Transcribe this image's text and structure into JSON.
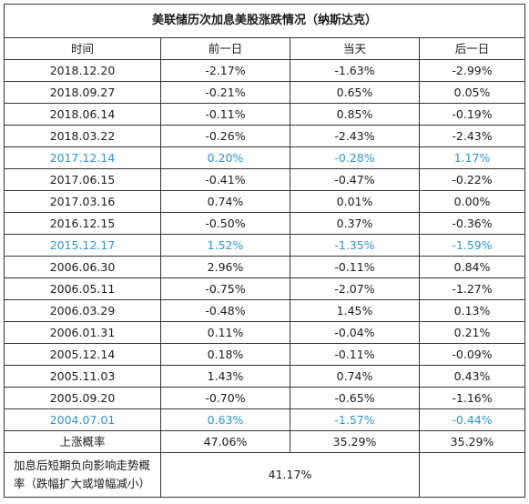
{
  "title": "美联储历次加息美股涨跌情况（纳斯达克）",
  "headers": [
    "时间",
    "前一日",
    "当天",
    "后一日"
  ],
  "highlight_color": "#2f95c9",
  "rows": [
    {
      "date": "2018.12.20",
      "prev": "-2.17%",
      "day": "-1.63%",
      "next": "-2.99%",
      "highlight": false
    },
    {
      "date": "2018.09.27",
      "prev": "-0.21%",
      "day": "0.65%",
      "next": "0.05%",
      "highlight": false
    },
    {
      "date": "2018.06.14",
      "prev": "-0.11%",
      "day": "0.85%",
      "next": "-0.19%",
      "highlight": false
    },
    {
      "date": "2018.03.22",
      "prev": "-0.26%",
      "day": "-2.43%",
      "next": "-2.43%",
      "highlight": false
    },
    {
      "date": "2017.12.14",
      "prev": "0.20%",
      "day": "-0.28%",
      "next": "1.17%",
      "highlight": true
    },
    {
      "date": "2017.06.15",
      "prev": "-0.41%",
      "day": "-0.47%",
      "next": "-0.22%",
      "highlight": false
    },
    {
      "date": "2017.03.16",
      "prev": "0.74%",
      "day": "0.01%",
      "next": "0.00%",
      "highlight": false
    },
    {
      "date": "2016.12.15",
      "prev": "-0.50%",
      "day": "0.37%",
      "next": "-0.36%",
      "highlight": false
    },
    {
      "date": "2015.12.17",
      "prev": "1.52%",
      "day": "-1.35%",
      "next": "-1.59%",
      "highlight": true
    },
    {
      "date": "2006.06.30",
      "prev": "2.96%",
      "day": "-0.11%",
      "next": "0.84%",
      "highlight": false
    },
    {
      "date": "2006.05.11",
      "prev": "-0.75%",
      "day": "-2.07%",
      "next": "-1.27%",
      "highlight": false
    },
    {
      "date": "2006.03.29",
      "prev": "-0.48%",
      "day": "1.45%",
      "next": "0.13%",
      "highlight": false
    },
    {
      "date": "2006.01.31",
      "prev": "0.11%",
      "day": "-0.04%",
      "next": "0.21%",
      "highlight": false
    },
    {
      "date": "2005.12.14",
      "prev": "0.18%",
      "day": "-0.11%",
      "next": "-0.09%",
      "highlight": false
    },
    {
      "date": "2005.11.03",
      "prev": "1.43%",
      "day": "0.74%",
      "next": "0.43%",
      "highlight": false
    },
    {
      "date": "2005.09.20",
      "prev": "-0.70%",
      "day": "-0.65%",
      "next": "-1.16%",
      "highlight": false
    },
    {
      "date": "2004.07.01",
      "prev": "0.63%",
      "day": "-1.57%",
      "next": "-0.44%",
      "highlight": true
    }
  ],
  "rise_prob": {
    "label": "上涨概率",
    "prev": "47.06%",
    "day": "35.29%",
    "next": "35.29%"
  },
  "neg_impact": {
    "label": "加息后短期负向影响走势概率（跌幅扩大或增幅减小）",
    "value": "41.17%"
  }
}
